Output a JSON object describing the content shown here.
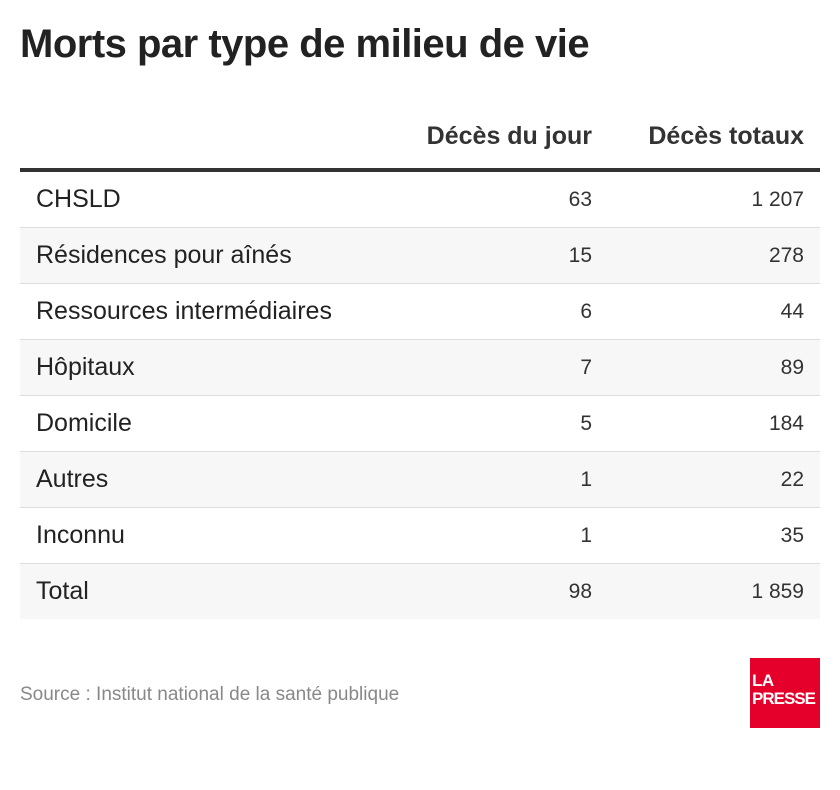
{
  "title": "Morts par type de milieu de vie",
  "source": "Source : Institut national de la santé publique",
  "logo": {
    "line1": "LA",
    "line2": "PRESSE",
    "color": "#e4002b"
  },
  "chart_data": {
    "type": "table",
    "title": "Morts par type de milieu de vie",
    "columns": [
      "",
      "Décès du jour",
      "Décès totaux"
    ],
    "rows": [
      {
        "label": "CHSLD",
        "day": "63",
        "total": "1 207"
      },
      {
        "label": "Résidences pour aînés",
        "day": "15",
        "total": "278"
      },
      {
        "label": "Ressources intermédiaires",
        "day": "6",
        "total": "44"
      },
      {
        "label": "Hôpitaux",
        "day": "7",
        "total": "89"
      },
      {
        "label": "Domicile",
        "day": "5",
        "total": "184"
      },
      {
        "label": "Autres",
        "day": "1",
        "total": "22"
      },
      {
        "label": "Inconnu",
        "day": "1",
        "total": "35"
      },
      {
        "label": "Total",
        "day": "98",
        "total": "1 859"
      }
    ]
  }
}
